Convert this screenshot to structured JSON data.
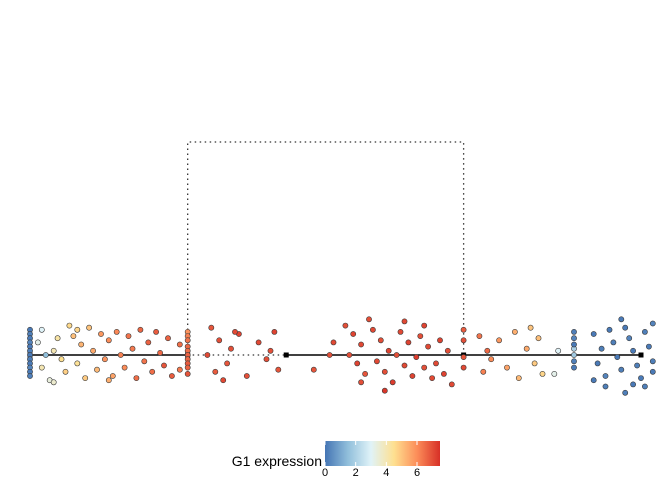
{
  "chart_data": {
    "type": "scatter",
    "title": "",
    "description_free": true,
    "legend": {
      "title": "G1 expression",
      "ticks": [
        "0",
        "2",
        "4",
        "6"
      ],
      "range": [
        0,
        7.5
      ],
      "placement": "bottom-center",
      "colors": [
        "#4575b4",
        "#91bfdb",
        "#e0f3f8",
        "#fee090",
        "#fc8d59",
        "#d73027"
      ]
    },
    "tree": {
      "nodes": [
        {
          "id": "n1",
          "x": 0.0,
          "y": 0.0
        },
        {
          "id": "n2",
          "x": 4.0,
          "y": 0.0
        },
        {
          "id": "n3",
          "x": 6.5,
          "y": 0.0
        },
        {
          "id": "n4",
          "x": 11.0,
          "y": 0.0
        },
        {
          "id": "n5",
          "x": 15.5,
          "y": 0.0
        }
      ],
      "solid_edges": [
        [
          "n1",
          "n2"
        ],
        [
          "n3",
          "n4"
        ],
        [
          "n4",
          "n5"
        ]
      ],
      "dotted_edges": [
        [
          "n2",
          "n3"
        ]
      ],
      "dotted_bracket": {
        "x_left": 4.0,
        "x_right": 11.0,
        "height": 5.0
      },
      "xlim": [
        -0.3,
        15.9
      ],
      "ylim": [
        -1.0,
        7.2
      ]
    },
    "groups": [
      {
        "name": "column-at-n1",
        "points": [
          [
            0.0,
            0.6,
            0.1
          ],
          [
            0.0,
            0.5,
            0.2
          ],
          [
            0.0,
            0.4,
            0.1
          ],
          [
            0.0,
            0.3,
            0.3
          ],
          [
            0.0,
            0.2,
            0.1
          ],
          [
            0.0,
            0.1,
            0.2
          ],
          [
            0.0,
            0.0,
            0.1
          ],
          [
            0.0,
            -0.1,
            0.2
          ],
          [
            0.0,
            -0.2,
            0.1
          ],
          [
            0.0,
            -0.3,
            0.3
          ],
          [
            0.0,
            -0.4,
            0.1
          ],
          [
            0.0,
            -0.5,
            0.2
          ]
        ]
      },
      {
        "name": "segment-n1-n2",
        "points": [
          [
            0.3,
            0.6,
            3.0
          ],
          [
            0.2,
            0.3,
            3.2
          ],
          [
            0.4,
            0.0,
            1.5
          ],
          [
            0.3,
            -0.3,
            4.0
          ],
          [
            0.5,
            -0.6,
            3.4
          ],
          [
            0.7,
            0.4,
            4.2
          ],
          [
            0.8,
            -0.1,
            4.5
          ],
          [
            0.6,
            0.1,
            4.0
          ],
          [
            1.0,
            0.7,
            4.6
          ],
          [
            1.1,
            0.45,
            5.1
          ],
          [
            0.9,
            -0.4,
            4.8
          ],
          [
            1.2,
            -0.2,
            4.4
          ],
          [
            1.3,
            0.25,
            5.3
          ],
          [
            1.4,
            -0.55,
            4.9
          ],
          [
            1.5,
            0.65,
            5.0
          ],
          [
            1.6,
            0.1,
            5.5
          ],
          [
            1.7,
            -0.35,
            5.2
          ],
          [
            1.8,
            0.5,
            5.8
          ],
          [
            1.9,
            -0.1,
            5.9
          ],
          [
            2.0,
            0.35,
            6.0
          ],
          [
            2.1,
            -0.5,
            5.6
          ],
          [
            2.2,
            0.55,
            6.1
          ],
          [
            2.3,
            0.0,
            6.2
          ],
          [
            2.4,
            -0.3,
            6.0
          ],
          [
            2.5,
            0.45,
            6.4
          ],
          [
            2.6,
            0.15,
            6.3
          ],
          [
            2.7,
            -0.55,
            6.5
          ],
          [
            2.8,
            0.6,
            6.6
          ],
          [
            2.9,
            -0.15,
            6.4
          ],
          [
            3.0,
            0.3,
            6.7
          ],
          [
            3.1,
            -0.4,
            6.5
          ],
          [
            3.2,
            0.55,
            6.8
          ],
          [
            3.3,
            0.05,
            6.6
          ],
          [
            3.4,
            -0.25,
            6.9
          ],
          [
            3.5,
            0.4,
            6.7
          ],
          [
            3.6,
            -0.5,
            6.8
          ],
          [
            0.6,
            -0.65,
            3.6
          ],
          [
            1.2,
            0.6,
            4.7
          ],
          [
            2.0,
            -0.6,
            5.4
          ]
        ]
      },
      {
        "name": "column-at-n2",
        "points": [
          [
            4.0,
            0.55,
            5.9
          ],
          [
            4.0,
            0.45,
            6.2
          ],
          [
            4.0,
            0.35,
            6.4
          ],
          [
            4.0,
            0.2,
            6.6
          ],
          [
            4.0,
            0.1,
            6.5
          ],
          [
            4.0,
            0.0,
            6.7
          ],
          [
            4.0,
            -0.1,
            6.6
          ],
          [
            4.0,
            -0.2,
            6.8
          ],
          [
            4.0,
            -0.3,
            6.7
          ],
          [
            4.0,
            -0.45,
            6.9
          ],
          [
            3.8,
            0.25,
            6.5
          ],
          [
            3.8,
            -0.35,
            6.3
          ]
        ]
      },
      {
        "name": "segment-n2-n3",
        "points": [
          [
            4.6,
            0.65,
            6.9
          ],
          [
            4.8,
            0.35,
            7.0
          ],
          [
            4.5,
            0.0,
            7.1
          ],
          [
            4.7,
            -0.4,
            6.8
          ],
          [
            5.1,
            0.15,
            7.0
          ],
          [
            5.3,
            0.5,
            7.2
          ],
          [
            5.0,
            -0.2,
            6.9
          ],
          [
            5.5,
            -0.5,
            7.0
          ],
          [
            5.8,
            0.3,
            7.1
          ],
          [
            6.0,
            -0.1,
            7.0
          ],
          [
            6.2,
            0.55,
            7.2
          ],
          [
            6.3,
            -0.35,
            6.9
          ],
          [
            5.2,
            0.55,
            7.1
          ],
          [
            6.1,
            0.1,
            7.0
          ],
          [
            4.9,
            -0.6,
            7.1
          ]
        ]
      },
      {
        "name": "dotted-segment-points",
        "points": [
          [
            7.2,
            -0.35,
            6.9
          ],
          [
            7.6,
            0.0,
            7.0
          ],
          [
            7.7,
            0.3,
            7.1
          ]
        ]
      },
      {
        "name": "cluster-at-n3",
        "points": [
          [
            8.0,
            0.7,
            7.0
          ],
          [
            8.2,
            0.5,
            7.2
          ],
          [
            8.4,
            0.25,
            7.1
          ],
          [
            8.1,
            0.0,
            7.0
          ],
          [
            8.3,
            -0.2,
            7.2
          ],
          [
            8.5,
            -0.45,
            6.9
          ],
          [
            8.7,
            0.6,
            7.1
          ],
          [
            8.9,
            0.35,
            7.0
          ],
          [
            9.1,
            0.1,
            7.2
          ],
          [
            8.8,
            -0.15,
            7.1
          ],
          [
            9.0,
            -0.4,
            7.0
          ],
          [
            9.2,
            -0.65,
            7.3
          ],
          [
            9.4,
            0.55,
            7.1
          ],
          [
            9.6,
            0.3,
            7.2
          ],
          [
            9.3,
            0.0,
            7.0
          ],
          [
            9.5,
            -0.25,
            7.1
          ],
          [
            9.7,
            -0.5,
            7.2
          ],
          [
            9.9,
            0.45,
            7.0
          ],
          [
            10.1,
            0.2,
            7.1
          ],
          [
            9.8,
            -0.05,
            7.3
          ],
          [
            10.0,
            -0.3,
            7.0
          ],
          [
            10.2,
            -0.55,
            7.1
          ],
          [
            10.4,
            0.35,
            7.2
          ],
          [
            10.6,
            0.1,
            7.0
          ],
          [
            10.3,
            -0.2,
            7.1
          ],
          [
            10.5,
            -0.45,
            7.2
          ],
          [
            8.6,
            0.85,
            7.0
          ],
          [
            9.5,
            0.8,
            7.1
          ],
          [
            10.0,
            0.7,
            7.2
          ],
          [
            8.4,
            -0.65,
            7.0
          ],
          [
            9.0,
            -0.85,
            7.4
          ],
          [
            10.7,
            -0.7,
            7.1
          ]
        ]
      },
      {
        "name": "segment-n4-n5",
        "points": [
          [
            11.0,
            0.6,
            6.8
          ],
          [
            11.0,
            0.35,
            7.0
          ],
          [
            11.0,
            -0.05,
            6.9
          ],
          [
            11.0,
            -0.3,
            7.1
          ],
          [
            11.4,
            0.45,
            6.4
          ],
          [
            11.6,
            0.1,
            6.6
          ],
          [
            11.5,
            -0.4,
            6.2
          ],
          [
            11.7,
            -0.1,
            6.0
          ],
          [
            11.9,
            0.35,
            5.8
          ],
          [
            12.1,
            -0.3,
            5.6
          ],
          [
            12.3,
            0.55,
            5.4
          ],
          [
            12.4,
            -0.55,
            5.2
          ],
          [
            12.6,
            0.15,
            5.5
          ],
          [
            12.7,
            0.65,
            5.0
          ],
          [
            12.8,
            -0.2,
            4.9
          ],
          [
            12.9,
            0.4,
            5.1
          ],
          [
            13.0,
            -0.45,
            4.7
          ],
          [
            13.4,
            0.1,
            3.0
          ],
          [
            13.3,
            -0.45,
            3.2
          ],
          [
            13.8,
            0.15,
            2.0
          ],
          [
            13.8,
            0.0,
            1.8
          ]
        ]
      },
      {
        "name": "column-before-n5",
        "points": [
          [
            13.8,
            0.55,
            0.2
          ],
          [
            13.8,
            0.4,
            0.3
          ],
          [
            13.8,
            0.25,
            0.1
          ],
          [
            13.8,
            -0.15,
            0.2
          ],
          [
            13.8,
            -0.3,
            0.1
          ]
        ]
      },
      {
        "name": "cluster-at-n5",
        "points": [
          [
            14.3,
            0.5,
            0.1
          ],
          [
            14.5,
            0.15,
            0.2
          ],
          [
            14.4,
            -0.2,
            0.1
          ],
          [
            14.6,
            -0.5,
            0.3
          ],
          [
            14.7,
            0.6,
            0.1
          ],
          [
            14.8,
            0.3,
            0.2
          ],
          [
            14.9,
            -0.05,
            0.1
          ],
          [
            15.0,
            -0.35,
            0.2
          ],
          [
            15.1,
            0.65,
            0.1
          ],
          [
            15.2,
            0.4,
            0.3
          ],
          [
            15.3,
            0.1,
            0.1
          ],
          [
            15.4,
            -0.25,
            0.2
          ],
          [
            15.5,
            -0.55,
            0.1
          ],
          [
            15.6,
            0.55,
            0.2
          ],
          [
            15.7,
            0.2,
            0.1
          ],
          [
            15.8,
            -0.15,
            0.2
          ],
          [
            15.3,
            -0.7,
            0.1
          ],
          [
            14.6,
            -0.75,
            0.2
          ],
          [
            15.0,
            0.85,
            0.1
          ],
          [
            15.8,
            0.75,
            0.3
          ],
          [
            15.8,
            -0.4,
            0.1
          ],
          [
            15.1,
            -0.9,
            0.2
          ],
          [
            14.3,
            -0.6,
            0.1
          ],
          [
            15.6,
            -0.75,
            0.2
          ]
        ]
      }
    ]
  }
}
